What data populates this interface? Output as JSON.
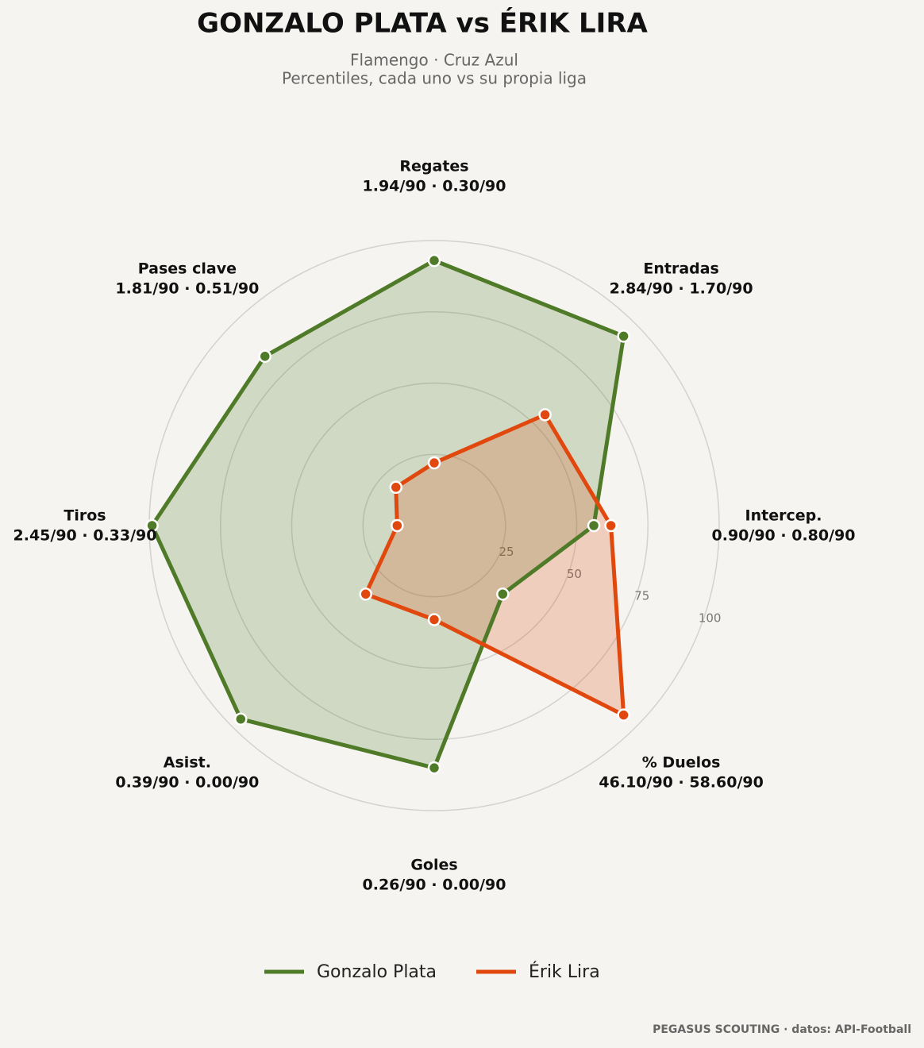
{
  "chart_data": {
    "type": "radar",
    "title": "GONZALO PLATA  vs  ÉRIK LIRA",
    "subtitle": [
      "Flamengo · Cruz Azul",
      "Percentiles, cada uno vs su propia liga"
    ],
    "categories": [
      "Regates",
      "Entradas",
      "Intercep.",
      "% Duelos",
      "Goles",
      "Asist.",
      "Tiros",
      "Pases clave"
    ],
    "category_stats": [
      "1.94/90 · 0.30/90",
      "2.84/90 · 1.70/90",
      "0.90/90 · 0.80/90",
      "46.10/90 · 58.60/90",
      "0.26/90 · 0.00/90",
      "0.39/90 · 0.00/90",
      "2.45/90 · 0.33/90",
      "1.81/90 · 0.51/90"
    ],
    "series": [
      {
        "name": "Gonzalo Plata",
        "color": "#4f7a28",
        "values": [
          93,
          94,
          56,
          34,
          85,
          96,
          99,
          84
        ]
      },
      {
        "name": "Érik Lira",
        "color": "#e0480e",
        "values": [
          22,
          55,
          62,
          94,
          33,
          34,
          13,
          19
        ]
      }
    ],
    "rlim": [
      0,
      100
    ],
    "rticks": [
      25,
      50,
      75,
      100
    ],
    "footer": "PEGASUS SCOUTING · datos: API-Football"
  }
}
